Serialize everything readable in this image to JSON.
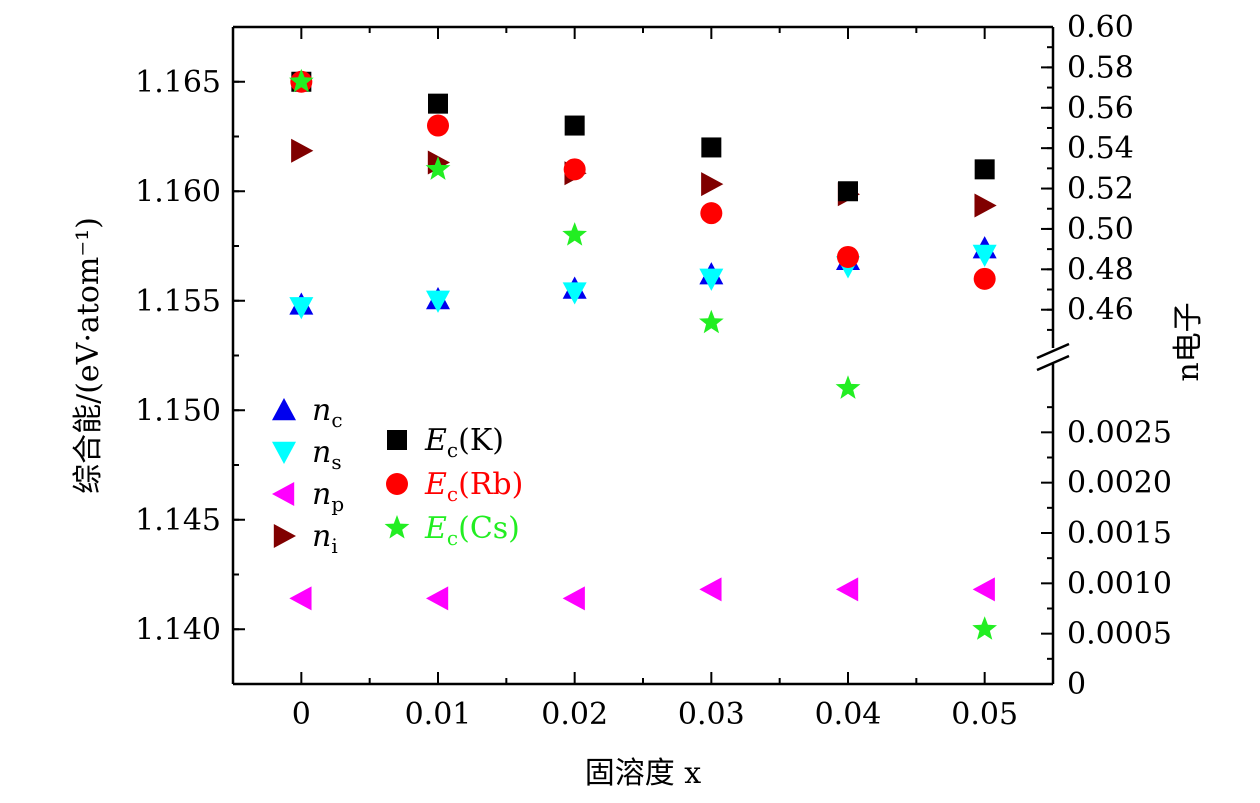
{
  "chart_data": {
    "type": "scatter",
    "title": "",
    "xlabel": "固溶度 x",
    "ylabel_left": "综合能/(eV·atom⁻¹)",
    "ylabel_right": "n电子",
    "x": [
      0,
      0.01,
      0.02,
      0.03,
      0.04,
      0.05
    ],
    "x_ticks": [
      "0",
      "0.01",
      "0.02",
      "0.03",
      "0.04",
      "0.05"
    ],
    "xlim": [
      -0.005,
      0.055
    ],
    "left_axis": {
      "ylim": [
        1.1375,
        1.1675
      ],
      "ticks": [
        1.14,
        1.145,
        1.15,
        1.155,
        1.16,
        1.165
      ],
      "tick_labels": [
        "1.140",
        "1.145",
        "1.150",
        "1.155",
        "1.160",
        "1.165"
      ]
    },
    "right_axis": {
      "broken": true,
      "lower": {
        "ylim": [
          0,
          0.003
        ],
        "ticks": [
          0,
          0.0005,
          0.001,
          0.0015,
          0.002,
          0.0025
        ],
        "tick_labels": [
          "0",
          "0.0005",
          "0.0010",
          "0.0015",
          "0.0020",
          "0.0025"
        ]
      },
      "upper": {
        "ylim": [
          0.445,
          0.6
        ],
        "ticks": [
          0.46,
          0.48,
          0.5,
          0.52,
          0.54,
          0.56,
          0.58,
          0.6
        ],
        "tick_labels": [
          "0.46",
          "0.48",
          "0.50",
          "0.52",
          "0.54",
          "0.56",
          "0.58",
          "0.60"
        ]
      }
    },
    "series": [
      {
        "name": "n_c",
        "label_main": "n",
        "label_sub": "c",
        "axis": "right",
        "marker": "triangle-up",
        "color": "#0000ee",
        "values": [
          0.4626,
          0.4653,
          0.4705,
          0.4776,
          0.4847,
          0.4905
        ]
      },
      {
        "name": "n_s",
        "label_main": "n",
        "label_sub": "s",
        "axis": "right",
        "marker": "triangle-down",
        "color": "#00ffff",
        "values": [
          0.4612,
          0.4644,
          0.4685,
          0.4753,
          0.4814,
          0.4871
        ]
      },
      {
        "name": "n_p",
        "label_main": "n",
        "label_sub": "p",
        "axis": "right",
        "marker": "triangle-left",
        "color": "#ff00ff",
        "values": [
          0.00085,
          0.00085,
          0.00085,
          0.00094,
          0.00094,
          0.00094
        ]
      },
      {
        "name": "n_i",
        "label_main": "n",
        "label_sub": "i",
        "axis": "right",
        "marker": "triangle-right",
        "color": "#800000",
        "values": [
          0.5387,
          0.5329,
          0.5276,
          0.5222,
          0.5172,
          0.5116
        ]
      },
      {
        "name": "E_c(K)",
        "label_main": "E",
        "label_sub": "c",
        "label_tail": "(K)",
        "axis": "left",
        "marker": "square",
        "color": "#000000",
        "values": [
          1.165,
          1.164,
          1.163,
          1.162,
          1.16,
          1.161
        ]
      },
      {
        "name": "E_c(Rb)",
        "label_main": "E",
        "label_sub": "c",
        "label_tail": "(Rb)",
        "axis": "left",
        "marker": "circle",
        "color": "#ff0000",
        "values": [
          1.165,
          1.163,
          1.161,
          1.159,
          1.157,
          1.156
        ]
      },
      {
        "name": "E_c(Cs)",
        "label_main": "E",
        "label_sub": "c",
        "label_tail": "(Cs)",
        "axis": "left",
        "marker": "star",
        "color": "#22ee22",
        "values": [
          1.165,
          1.161,
          1.158,
          1.154,
          1.151,
          1.14
        ]
      }
    ],
    "legend": {
      "placement": "lower-left",
      "columns": [
        [
          "n_c",
          "n_s",
          "n_p",
          "n_i"
        ],
        [
          "E_c(K)",
          "E_c(Rb)",
          "E_c(Cs)"
        ]
      ]
    },
    "grid": false
  }
}
